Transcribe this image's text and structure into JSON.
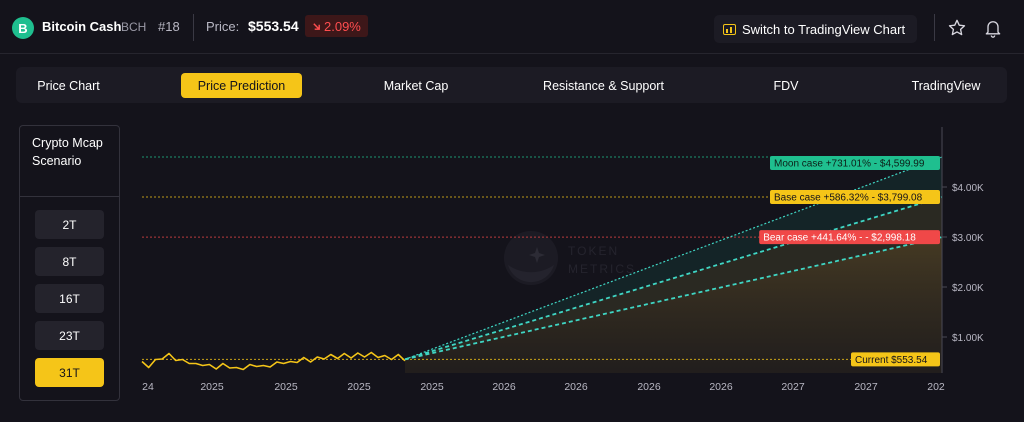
{
  "header": {
    "coin_name": "Bitcoin Cash",
    "coin_ticker": "BCH",
    "rank": "#18",
    "price_label": "Price:",
    "price_value": "$553.54",
    "change": "2.09%",
    "change_direction": "down",
    "tv_button_label": "Switch to TradingView Chart",
    "logo_icon": "bitcoin-cash-logo",
    "star_icon": "star-icon",
    "bell_icon": "bell-icon"
  },
  "tabs": [
    {
      "label": "Price Chart",
      "active": false
    },
    {
      "label": "Price Prediction",
      "active": true
    },
    {
      "label": "Market Cap",
      "active": false
    },
    {
      "label": "Resistance & Support",
      "active": false
    },
    {
      "label": "FDV",
      "active": false
    },
    {
      "label": "TradingView",
      "active": false
    }
  ],
  "scenario": {
    "title": "Crypto Mcap Scenario",
    "options": [
      {
        "label": "2T",
        "active": false
      },
      {
        "label": "8T",
        "active": false
      },
      {
        "label": "16T",
        "active": false
      },
      {
        "label": "23T",
        "active": false
      },
      {
        "label": "31T",
        "active": true
      }
    ]
  },
  "colors": {
    "accent": "#f5c518",
    "moon": "#1fbf8f",
    "base": "#f5c518",
    "bear": "#f04848",
    "negative": "#ff4d4f"
  },
  "chart_data": {
    "type": "line",
    "watermark": "TOKEN METRICS",
    "x_tick_labels": [
      "24",
      "2025",
      "2025",
      "2025",
      "2025",
      "2026",
      "2026",
      "2026",
      "2026",
      "2027",
      "2027",
      "202"
    ],
    "y_tick_labels": [
      "$4.00K",
      "$3.00K",
      "$2.00K",
      "$1.00K"
    ],
    "y_ticks": [
      4000,
      3000,
      2000,
      1000
    ],
    "ylim": [
      280,
      5200
    ],
    "history": [
      480,
      420,
      520,
      590,
      640,
      560,
      520,
      500,
      440,
      460,
      420,
      390,
      440,
      410,
      360,
      380,
      420,
      440,
      400,
      430,
      470,
      500,
      480,
      520,
      560,
      530,
      570,
      590,
      620,
      600,
      640,
      610,
      650,
      630,
      660,
      620,
      600,
      580,
      620,
      553
    ],
    "cases": [
      {
        "label": "Moon case +731.01% - $4,599.99",
        "value": 4599.99,
        "color": "#1fbf8f"
      },
      {
        "label": "Base case +586.32% - $3,799.08",
        "value": 3799.08,
        "color": "#f5c518"
      },
      {
        "label": "Bear case +441.64% - - $2,998.18",
        "value": 2998.18,
        "color": "#f04848"
      }
    ],
    "current": {
      "label": "Current $553.54",
      "value": 553.54
    }
  }
}
